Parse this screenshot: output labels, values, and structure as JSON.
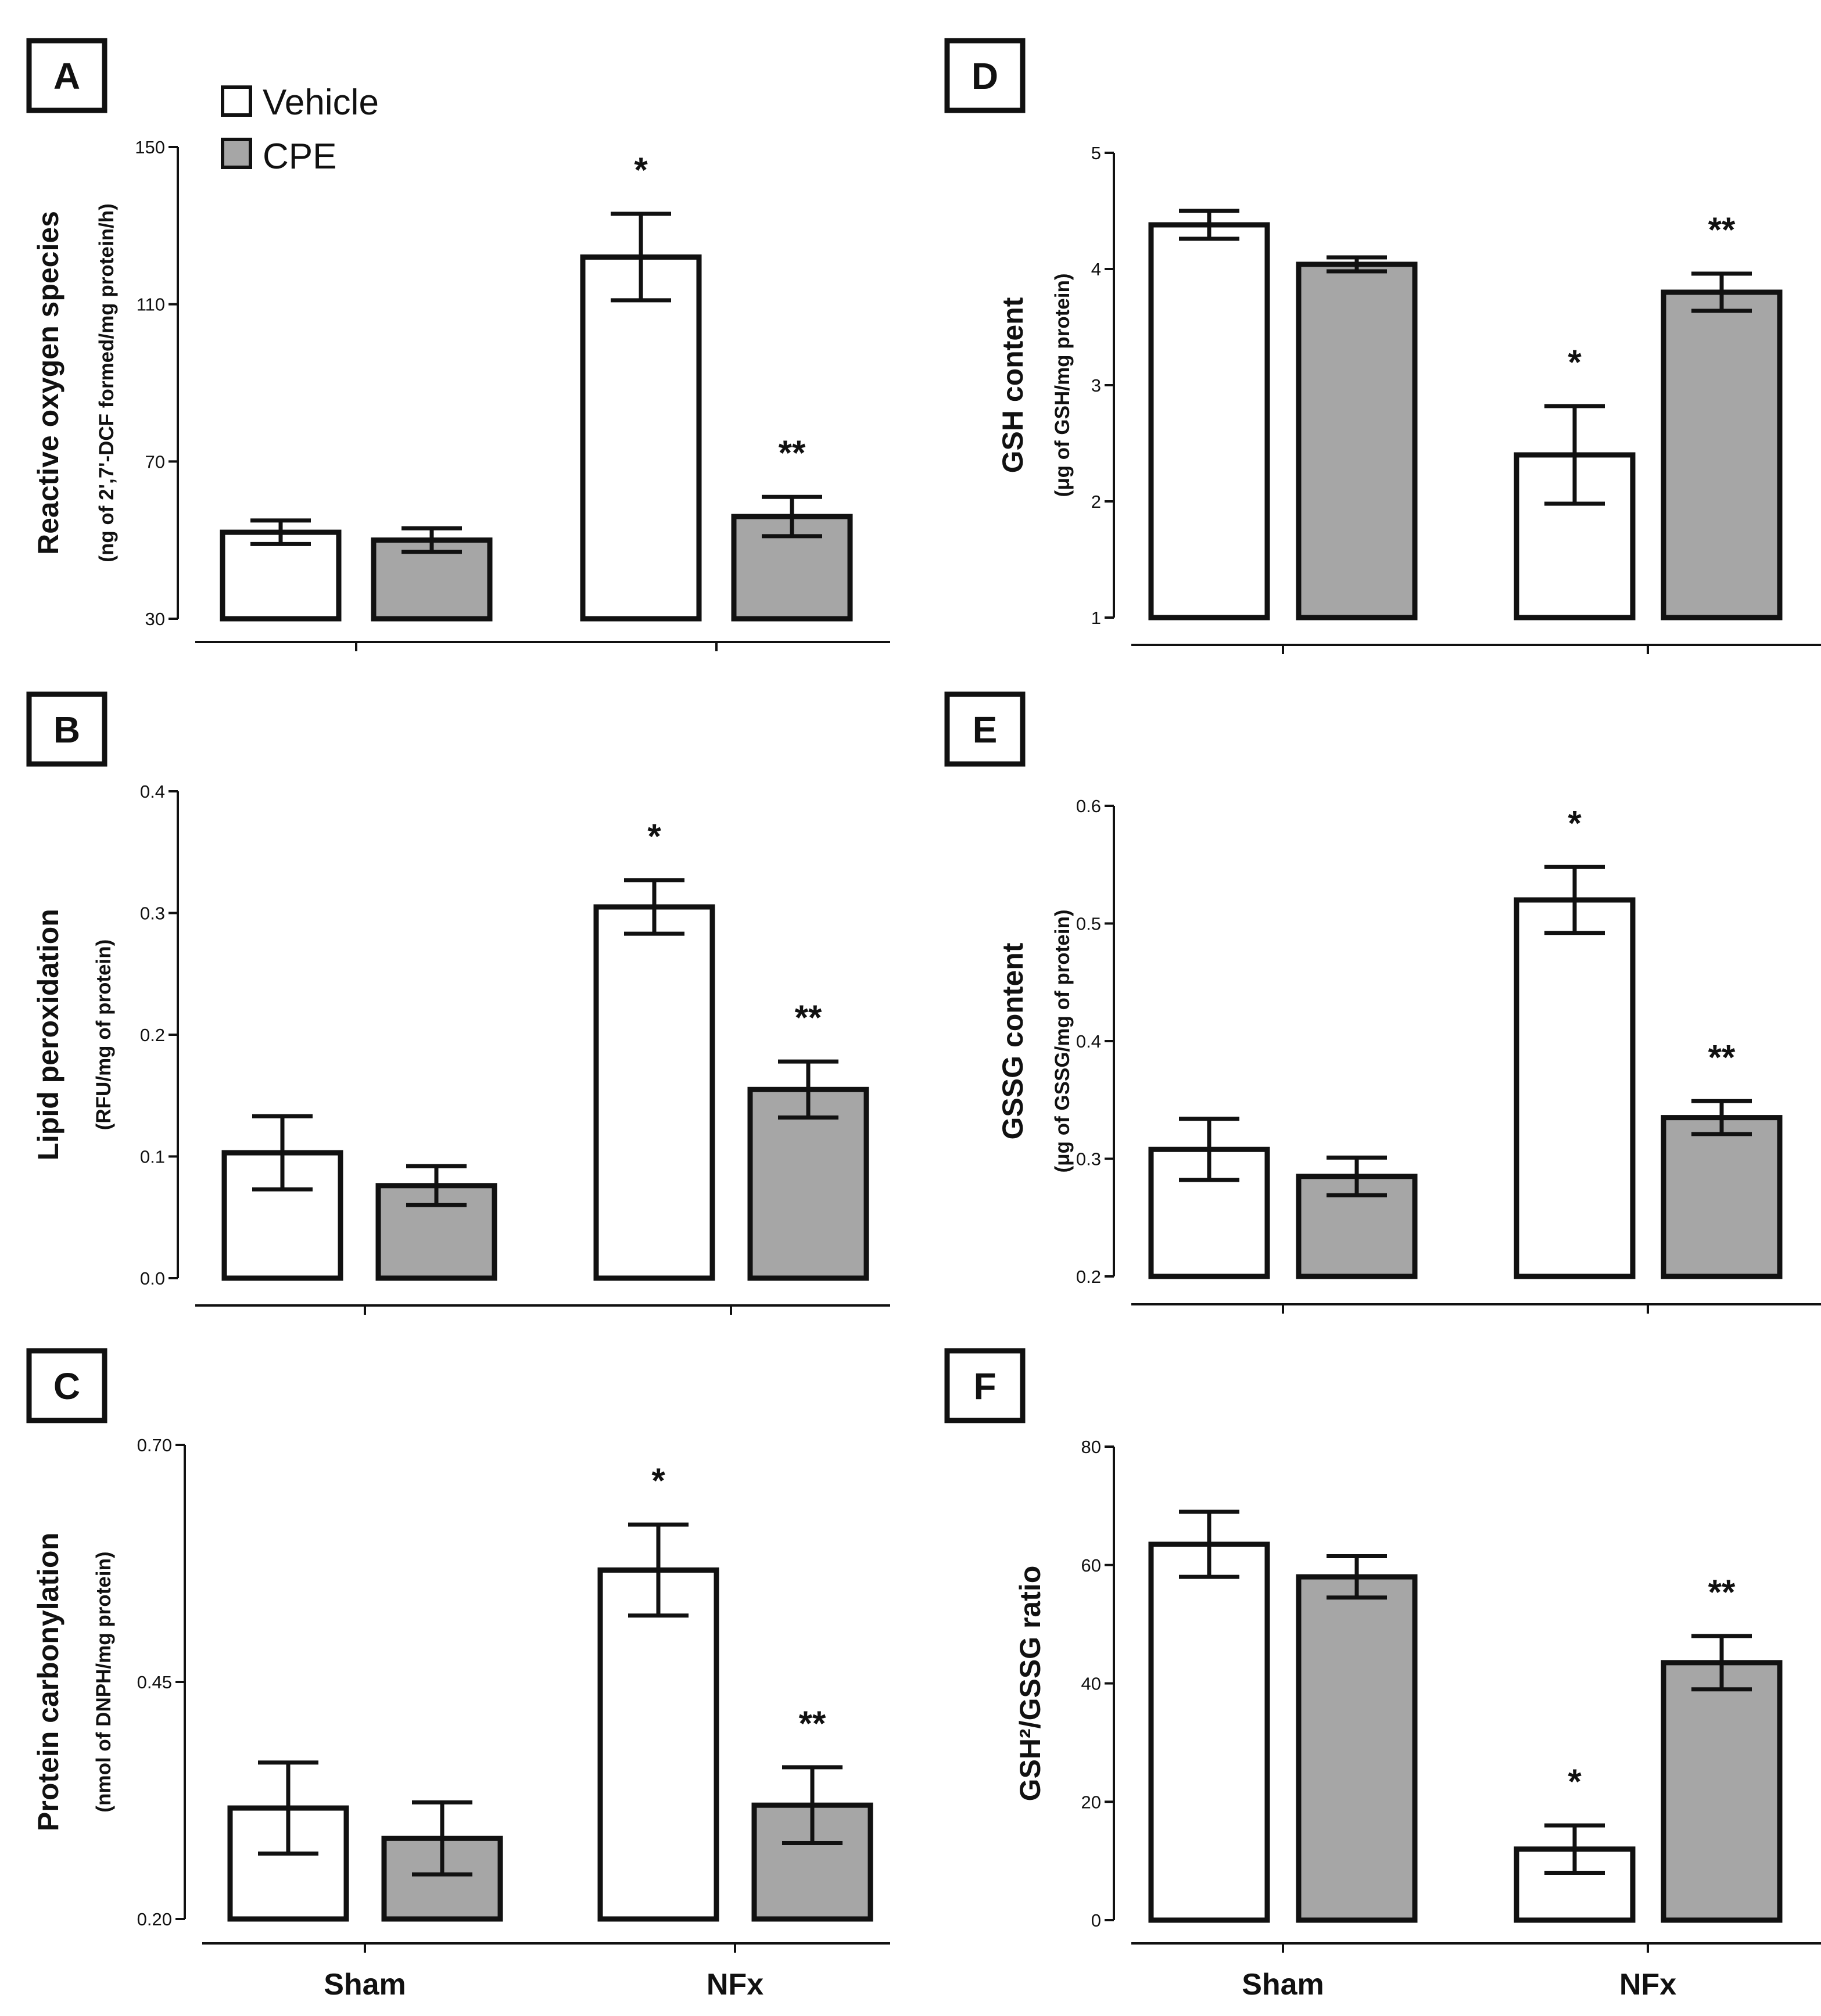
{
  "legend": {
    "items": [
      {
        "label": "Vehicle",
        "color": "#ffffff"
      },
      {
        "label": "CPE",
        "color": "#a6a6a6"
      }
    ]
  },
  "colors": {
    "vehicle": "#ffffff",
    "cpe": "#a6a6a6",
    "stroke": "#111111"
  },
  "chart_data": [
    {
      "panel": "A",
      "type": "bar",
      "title": "",
      "ylabel": "Reactive oxygen species",
      "ylabel_sub": "(ng of 2',7'-DCF formed/mg protein/h)",
      "xlabel": "",
      "categories": [
        "Sham",
        "NFx"
      ],
      "show_category_labels": false,
      "ylim": [
        30,
        150
      ],
      "yticks": [
        30,
        70,
        110,
        150
      ],
      "ytick_labels": [
        "30",
        "70",
        "110",
        "150"
      ],
      "series": [
        {
          "name": "Vehicle",
          "values": [
            52,
            122
          ],
          "errors": [
            3,
            11
          ],
          "sig": [
            "",
            "*"
          ]
        },
        {
          "name": "CPE",
          "values": [
            50,
            56
          ],
          "errors": [
            3,
            5
          ],
          "sig": [
            "",
            "**"
          ]
        }
      ]
    },
    {
      "panel": "B",
      "type": "bar",
      "title": "",
      "ylabel": "Lipid peroxidation",
      "ylabel_sub": "(RFU/mg of protein)",
      "xlabel": "",
      "categories": [
        "Sham",
        "NFx"
      ],
      "show_category_labels": false,
      "ylim": [
        0.0,
        0.4
      ],
      "yticks": [
        0.0,
        0.1,
        0.2,
        0.3,
        0.4
      ],
      "ytick_labels": [
        "0.0",
        "0.1",
        "0.2",
        "0.3",
        "0.4"
      ],
      "series": [
        {
          "name": "Vehicle",
          "values": [
            0.103,
            0.305
          ],
          "errors": [
            0.03,
            0.022
          ],
          "sig": [
            "",
            "*"
          ]
        },
        {
          "name": "CPE",
          "values": [
            0.076,
            0.155
          ],
          "errors": [
            0.016,
            0.023
          ],
          "sig": [
            "",
            "**"
          ]
        }
      ]
    },
    {
      "panel": "C",
      "type": "bar",
      "title": "",
      "ylabel": "Protein carbonylation",
      "ylabel_sub": "(nmol of DNPH/mg protein)",
      "xlabel": "",
      "categories": [
        "Sham",
        "NFx"
      ],
      "show_category_labels": true,
      "ylim": [
        0.2,
        0.7
      ],
      "yticks": [
        0.2,
        0.45,
        0.7
      ],
      "ytick_labels": [
        "0.20",
        "0.45",
        "0.70"
      ],
      "series": [
        {
          "name": "Vehicle",
          "values": [
            0.317,
            0.568
          ],
          "errors": [
            0.048,
            0.048
          ],
          "sig": [
            "",
            "*"
          ]
        },
        {
          "name": "CPE",
          "values": [
            0.285,
            0.32
          ],
          "errors": [
            0.038,
            0.04
          ],
          "sig": [
            "",
            "**"
          ]
        }
      ]
    },
    {
      "panel": "D",
      "type": "bar",
      "title": "",
      "ylabel": "GSH content",
      "ylabel_sub": "(μg of GSH/mg protein)",
      "xlabel": "",
      "categories": [
        "Sham",
        "NFx"
      ],
      "show_category_labels": false,
      "ylim": [
        1,
        5
      ],
      "yticks": [
        1,
        2,
        3,
        4,
        5
      ],
      "ytick_labels": [
        "1",
        "2",
        "3",
        "4",
        "5"
      ],
      "series": [
        {
          "name": "Vehicle",
          "values": [
            4.38,
            2.4
          ],
          "errors": [
            0.12,
            0.42
          ],
          "sig": [
            "",
            "*"
          ]
        },
        {
          "name": "CPE",
          "values": [
            4.04,
            3.8
          ],
          "errors": [
            0.06,
            0.16
          ],
          "sig": [
            "",
            "**"
          ]
        }
      ]
    },
    {
      "panel": "E",
      "type": "bar",
      "title": "",
      "ylabel": "GSSG content",
      "ylabel_sub": "(μg of GSSG/mg of protein)",
      "xlabel": "",
      "categories": [
        "Sham",
        "NFx"
      ],
      "show_category_labels": false,
      "ylim": [
        0.2,
        0.6
      ],
      "yticks": [
        0.2,
        0.3,
        0.4,
        0.5,
        0.6
      ],
      "ytick_labels": [
        "0.2",
        "0.3",
        "0.4",
        "0.5",
        "0.6"
      ],
      "series": [
        {
          "name": "Vehicle",
          "values": [
            0.308,
            0.52
          ],
          "errors": [
            0.026,
            0.028
          ],
          "sig": [
            "",
            "*"
          ]
        },
        {
          "name": "CPE",
          "values": [
            0.285,
            0.335
          ],
          "errors": [
            0.016,
            0.014
          ],
          "sig": [
            "",
            "**"
          ]
        }
      ]
    },
    {
      "panel": "F",
      "type": "bar",
      "title": "",
      "ylabel": "GSH²/GSSG ratio",
      "ylabel_sub": "",
      "xlabel": "",
      "categories": [
        "Sham",
        "NFx"
      ],
      "show_category_labels": true,
      "ylim": [
        0,
        80
      ],
      "yticks": [
        0,
        20,
        40,
        60,
        80
      ],
      "ytick_labels": [
        "0",
        "20",
        "40",
        "60",
        "80"
      ],
      "series": [
        {
          "name": "Vehicle",
          "values": [
            63.5,
            12
          ],
          "errors": [
            5.5,
            4
          ],
          "sig": [
            "",
            "*"
          ]
        },
        {
          "name": "CPE",
          "values": [
            58,
            43.5
          ],
          "errors": [
            3.5,
            4.5
          ],
          "sig": [
            "",
            "**"
          ]
        }
      ]
    }
  ]
}
